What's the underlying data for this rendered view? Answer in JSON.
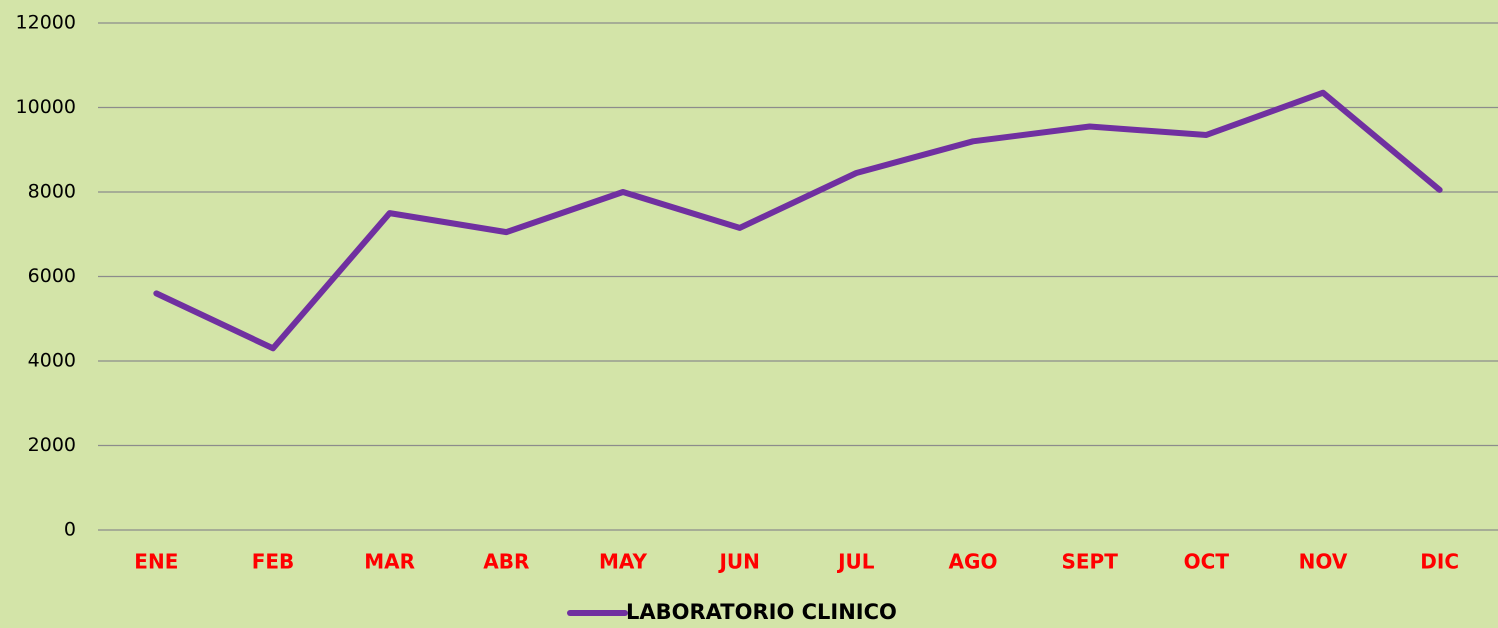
{
  "chart_data": {
    "type": "line",
    "categories": [
      "ENE",
      "FEB",
      "MAR",
      "ABR",
      "MAY",
      "JUN",
      "JUL",
      "AGO",
      "SEPT",
      "OCT",
      "NOV",
      "DIC"
    ],
    "series": [
      {
        "name": "LABORATORIO CLINICO",
        "color": "#7030a0",
        "values": [
          5600,
          4300,
          7500,
          7050,
          8000,
          7150,
          8450,
          9200,
          9550,
          9350,
          10350,
          8050
        ]
      }
    ],
    "ylim": [
      0,
      12000
    ],
    "yticks": [
      0,
      2000,
      4000,
      6000,
      8000,
      10000,
      12000
    ],
    "grid": true,
    "legend": "bottom",
    "category_color": "#ff0000",
    "background": "#d3e4a8"
  }
}
